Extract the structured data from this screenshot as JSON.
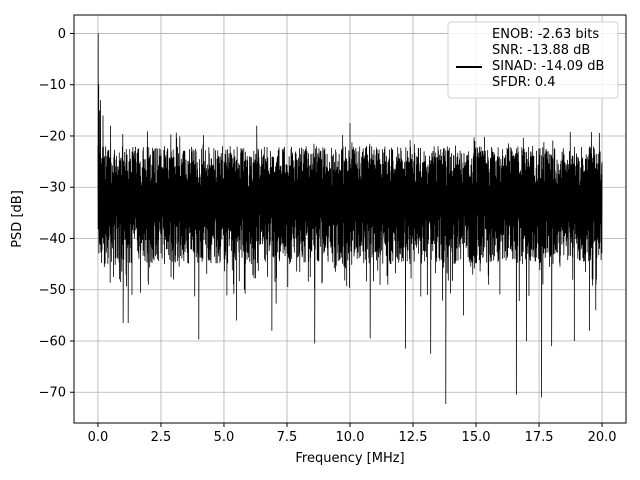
{
  "chart_data": {
    "type": "line",
    "title": "",
    "xlabel": "Frequency [MHz]",
    "ylabel": "PSD [dB]",
    "xlim": [
      -0.95,
      20.95
    ],
    "ylim": [
      -76,
      3.6
    ],
    "xticks": [
      0.0,
      2.5,
      5.0,
      7.5,
      10.0,
      12.5,
      15.0,
      17.5,
      20.0
    ],
    "xtick_labels": [
      "0.0",
      "2.5",
      "5.0",
      "7.5",
      "10.0",
      "12.5",
      "15.0",
      "17.5",
      "20.0"
    ],
    "yticks": [
      0,
      -10,
      -20,
      -30,
      -40,
      -50,
      -60,
      -70
    ],
    "ytick_labels": [
      "0",
      "−10",
      "−20",
      "−30",
      "−40",
      "−50",
      "−60",
      "−70"
    ],
    "grid": true,
    "legend_position": "top-right",
    "legend": [
      "ENOB: -2.63 bits",
      "SNR: -13.88 dB",
      "SINAD: -14.09 dB",
      "SFDR: 0.4"
    ],
    "series": [
      {
        "color": "#000000",
        "x_range": [
          0,
          20
        ],
        "noise_band": {
          "upper": -22,
          "lower": -45,
          "median": -32
        },
        "points": [
          [
            0.0,
            -22
          ],
          [
            0.01,
            0.0
          ],
          [
            0.03,
            -10
          ],
          [
            0.06,
            -15
          ],
          [
            0.1,
            -13
          ],
          [
            0.15,
            -40
          ],
          [
            0.2,
            -16
          ],
          [
            0.3,
            -38
          ],
          [
            0.5,
            -18
          ],
          [
            0.62,
            -47.5
          ],
          [
            0.9,
            -48.5
          ],
          [
            1.0,
            -56.5
          ],
          [
            1.2,
            -56.5
          ],
          [
            1.35,
            -51
          ],
          [
            2.0,
            -49
          ],
          [
            3.0,
            -48
          ],
          [
            4.0,
            -59.7
          ],
          [
            5.5,
            -56
          ],
          [
            6.3,
            -18
          ],
          [
            6.9,
            -58
          ],
          [
            8.6,
            -60.5
          ],
          [
            10.0,
            -17.5
          ],
          [
            10.8,
            -59.5
          ],
          [
            11.5,
            -49
          ],
          [
            12.2,
            -61.5
          ],
          [
            13.2,
            -62.5
          ],
          [
            13.8,
            -72.3
          ],
          [
            14.5,
            -55
          ],
          [
            16.6,
            -70.5
          ],
          [
            17.0,
            -60
          ],
          [
            17.6,
            -71
          ],
          [
            18.0,
            -61
          ],
          [
            18.9,
            -60
          ],
          [
            19.5,
            -58
          ],
          [
            19.75,
            -54
          ],
          [
            20.0,
            -25
          ]
        ]
      }
    ]
  }
}
